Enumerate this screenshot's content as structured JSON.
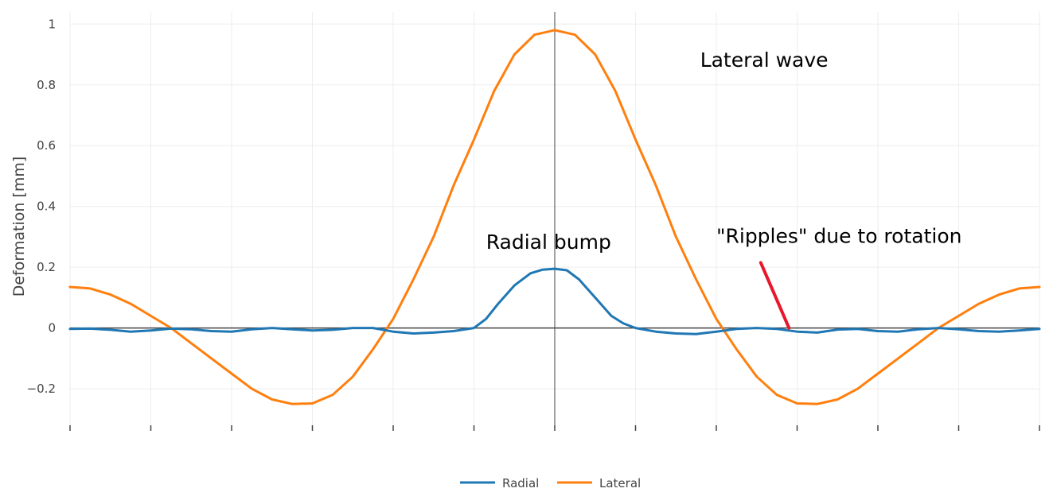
{
  "chart_data": {
    "type": "line",
    "title": "",
    "xlabel": "",
    "ylabel": "Deformation [mm]",
    "xlim": [
      0,
      12
    ],
    "ylim": [
      -0.32,
      1.04
    ],
    "yticks": [
      -0.2,
      0,
      0.2,
      0.4,
      0.6,
      0.8,
      1
    ],
    "ytick_labels": [
      "−0.2",
      "0",
      "0.2",
      "0.4",
      "0.6",
      "0.8",
      "1"
    ],
    "xticks": [
      0,
      1,
      2,
      3,
      4,
      5,
      6,
      7,
      8,
      9,
      10,
      11,
      12
    ],
    "xtick_labels": [
      "",
      "",
      "",
      "",
      "",
      "",
      "",
      "",
      "",
      "",
      "",
      "",
      ""
    ],
    "grid": true,
    "legend": "bottom-center",
    "series": [
      {
        "name": "Radial",
        "color": "#1f77b4",
        "x": [
          0,
          0.25,
          0.5,
          0.75,
          1.0,
          1.25,
          1.5,
          1.75,
          2.0,
          2.25,
          2.5,
          2.75,
          3.0,
          3.25,
          3.5,
          3.75,
          4.0,
          4.25,
          4.5,
          4.75,
          5.0,
          5.15,
          5.3,
          5.5,
          5.7,
          5.85,
          6.0,
          6.15,
          6.3,
          6.5,
          6.7,
          6.85,
          7.0,
          7.25,
          7.5,
          7.75,
          8.0,
          8.25,
          8.5,
          8.75,
          9.0,
          9.25,
          9.5,
          9.75,
          10.0,
          10.25,
          10.5,
          10.75,
          11.0,
          11.25,
          11.5,
          11.75,
          12.0
        ],
        "y": [
          -0.003,
          -0.002,
          -0.006,
          -0.012,
          -0.008,
          -0.002,
          -0.004,
          -0.01,
          -0.012,
          -0.004,
          0.0,
          -0.004,
          -0.008,
          -0.006,
          0.0,
          0.0,
          -0.012,
          -0.018,
          -0.015,
          -0.01,
          0.0,
          0.03,
          0.08,
          0.14,
          0.18,
          0.192,
          0.195,
          0.19,
          0.16,
          0.1,
          0.04,
          0.015,
          0.0,
          -0.012,
          -0.018,
          -0.02,
          -0.012,
          -0.003,
          0.0,
          -0.003,
          -0.012,
          -0.015,
          -0.005,
          -0.003,
          -0.01,
          -0.012,
          -0.004,
          0.0,
          -0.004,
          -0.01,
          -0.012,
          -0.008,
          -0.003
        ]
      },
      {
        "name": "Lateral",
        "color": "#ff7f0e",
        "x": [
          0,
          0.25,
          0.5,
          0.75,
          1.0,
          1.25,
          1.5,
          1.75,
          2.0,
          2.25,
          2.5,
          2.75,
          3.0,
          3.25,
          3.5,
          3.75,
          4.0,
          4.25,
          4.5,
          4.75,
          5.0,
          5.25,
          5.5,
          5.75,
          6.0,
          6.25,
          6.5,
          6.75,
          7.0,
          7.25,
          7.5,
          7.75,
          8.0,
          8.25,
          8.5,
          8.75,
          9.0,
          9.25,
          9.5,
          9.75,
          10.0,
          10.25,
          10.5,
          10.75,
          11.0,
          11.25,
          11.5,
          11.75,
          12.0
        ],
        "y": [
          0.135,
          0.13,
          0.11,
          0.08,
          0.04,
          0.0,
          -0.05,
          -0.1,
          -0.15,
          -0.2,
          -0.235,
          -0.25,
          -0.248,
          -0.22,
          -0.16,
          -0.07,
          0.03,
          0.16,
          0.3,
          0.47,
          0.62,
          0.78,
          0.9,
          0.965,
          0.98,
          0.965,
          0.9,
          0.78,
          0.62,
          0.47,
          0.3,
          0.16,
          0.03,
          -0.07,
          -0.16,
          -0.22,
          -0.248,
          -0.25,
          -0.235,
          -0.2,
          -0.15,
          -0.1,
          -0.05,
          0.0,
          0.04,
          0.08,
          0.11,
          0.13,
          0.135
        ]
      }
    ],
    "annotations": [
      {
        "text": "Lateral wave",
        "x": 7.8,
        "y": 0.86
      },
      {
        "text": "Radial bump",
        "x": 5.15,
        "y": 0.26
      },
      {
        "text": "\"Ripples\" due to rotation",
        "x": 8.0,
        "y": 0.28
      }
    ],
    "arrow": {
      "color": "#e8172b",
      "from": [
        8.55,
        0.215
      ],
      "to": [
        8.9,
        0.0
      ]
    }
  }
}
